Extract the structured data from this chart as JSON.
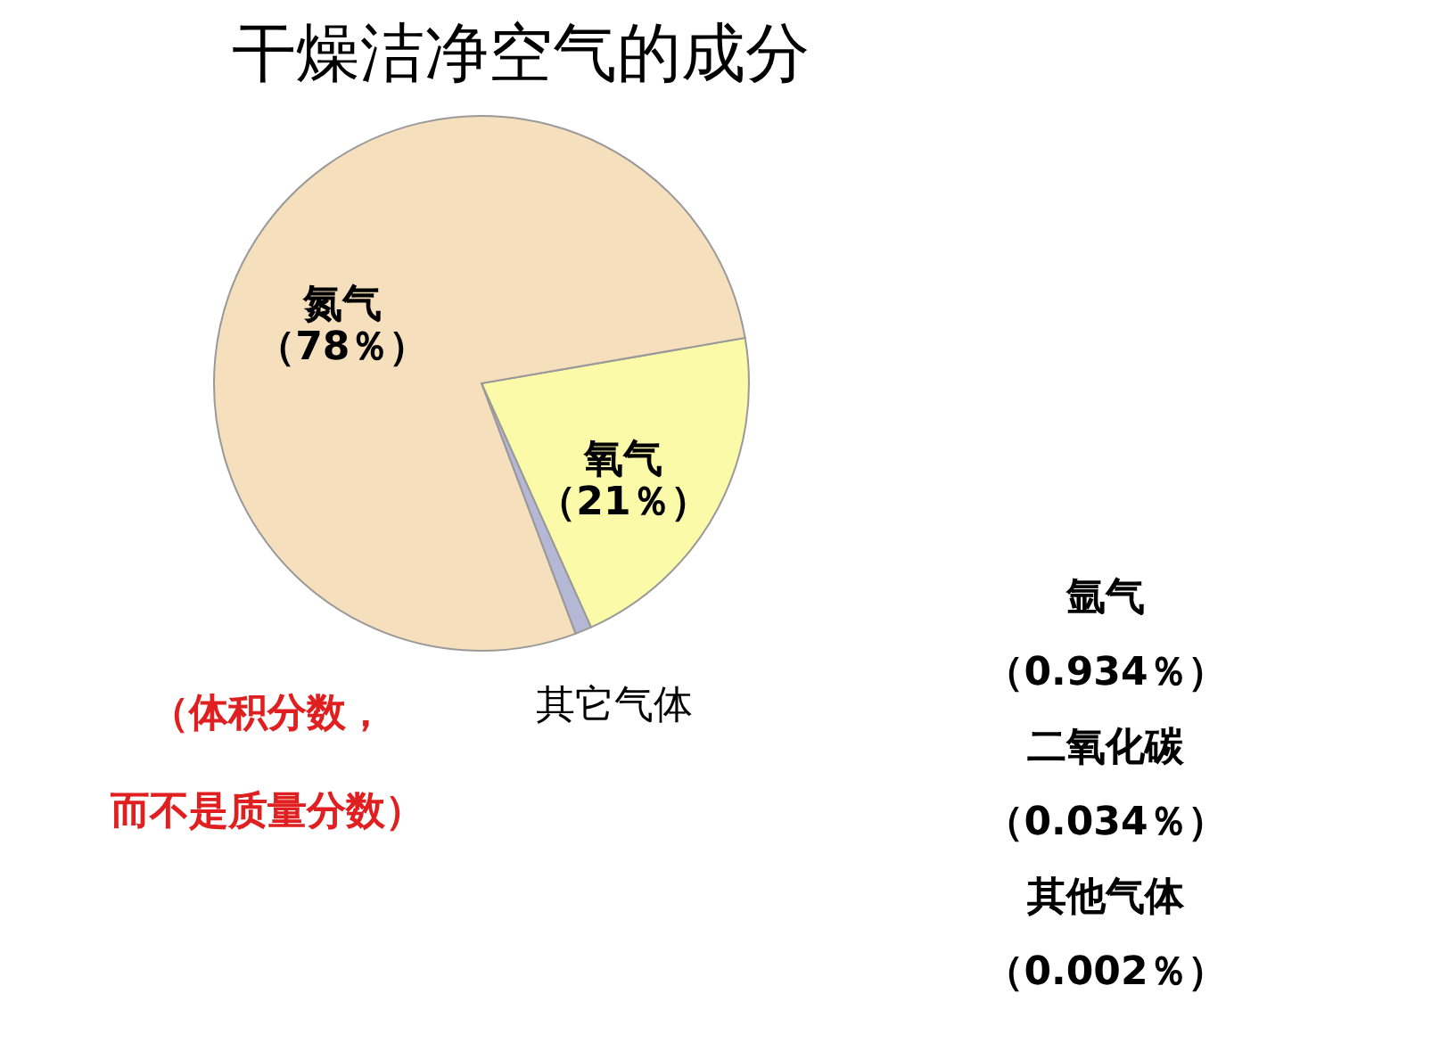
{
  "chart_data": {
    "type": "pie",
    "title": "干燥洁净空气的成分",
    "categories": [
      "氧气",
      "其它气体",
      "氮气"
    ],
    "values": [
      21,
      1,
      78
    ],
    "colors": [
      "#fafaa8",
      "#b4b8d4",
      "#f6dfbd"
    ],
    "value_labels": [
      "（21％）",
      null,
      "（78％）"
    ],
    "annotations": [
      "氩气",
      "（0.934％）",
      "二氧化碳",
      "（0.034％）",
      "其他气体",
      "（0.002％）",
      "（体积分数，",
      "而不是质量分数）"
    ]
  }
}
